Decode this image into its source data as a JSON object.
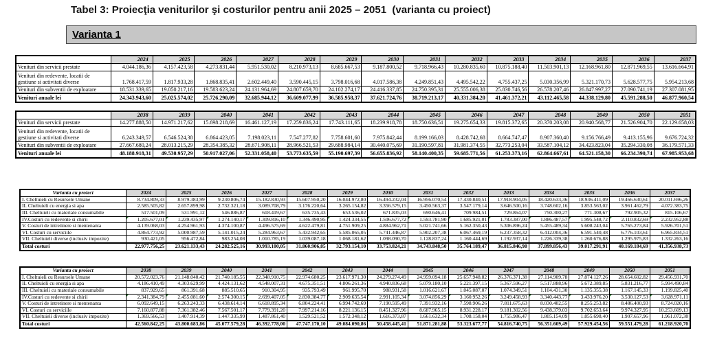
{
  "title": "Tabel 3: Proiecţia veniturilor şi costurilor pentru anii 2025 – 2051  (varianta cu proiect)",
  "variant_label": "Varianta 1",
  "colors": {
    "table_header_bg": "#d8d8d8",
    "variant_bar_bg": "#c6c6c6",
    "flag_green": "#2e7d32"
  },
  "tables": [
    {
      "kind": "rev",
      "years": [
        "2024",
        "2025",
        "2026",
        "2027",
        "2028",
        "2029",
        "2030",
        "2031",
        "2032",
        "2033",
        "2034",
        "2035",
        "2036",
        "2037"
      ],
      "rows": [
        {
          "label": "Venituri din servicii prestate",
          "values": [
            "4.044.186,36",
            "4.157.423,58",
            "4.273.831,44",
            "5.951.530,02",
            "8.210.973,13",
            "8.685.667,53",
            "9.187.800,52",
            "9.718.966,43",
            "10.280.835,60",
            "10.875.188,40",
            "11.503.901,13",
            "12.168.961,80",
            "12.871.969,55",
            "13.616.664,91"
          ]
        },
        {
          "label": "Venituri din redevente, locatii de gestiune si activitati diverse",
          "two_line": true,
          "values": [
            "1.768.417,59",
            "1.817.933,28",
            "1.868.835,41",
            "2.602.449,40",
            "3.590.445,15",
            "3.798.016,68",
            "4.017.586,38",
            "4.249.851,43",
            "4.495.542,22",
            "4.755.437,25",
            "5.030.356,99",
            "5.321.170,73",
            "5.628.577,75",
            "5.954.213,68"
          ]
        },
        {
          "label": "Venituri din subventii de exploatare",
          "values": [
            "18.531.339,65",
            "19.050.217,16",
            "19.583.623,24",
            "24.131.964,69",
            "24.807.659,70",
            "24.102.274,17",
            "24.416.337,85",
            "24.750.395,31",
            "25.555.006,38",
            "25.830.746,56",
            "26.578.207,46",
            "26.847.997,27",
            "27.090.741,19",
            "27.307.081,95"
          ]
        }
      ],
      "total": {
        "label": "Venituri anuale lei",
        "values": [
          "24.343.943,60",
          "25.025.574,02",
          "25.726.290,09",
          "32.685.944,12",
          "36.609.077,99",
          "36.585.958,37",
          "37.621.724,76",
          "38.719.213,17",
          "40.331.384,20",
          "41.461.372,21",
          "43.112.465,58",
          "44.338.129,80",
          "45.591.288,50",
          "46.877.960,54"
        ]
      }
    },
    {
      "kind": "rev",
      "years": [
        "2038",
        "2039",
        "2040",
        "2041",
        "2042",
        "2043",
        "2044",
        "2045",
        "2046",
        "2047",
        "2048",
        "2049",
        "2050",
        "2051"
      ],
      "rows": [
        {
          "label": "Venituri din servicii prestate",
          "values": [
            "14.277.888,50",
            "14.971.217,62",
            "15.698.218,69",
            "16.461.127,19",
            "17.259.836,24",
            "17.743.111,65",
            "18.239.918,78",
            "18.750.636,51",
            "19.275.654,33",
            "19.815.372,65",
            "20.370.203,08",
            "20.940.568,77",
            "21.526.904,70",
            "22.129.658,03"
          ]
        },
        {
          "label": "Venituri din redevente, locatii de gestiune si activitati diverse",
          "two_line": true,
          "values": [
            "6.243.349,57",
            "6.546.524,38",
            "6.864.423,05",
            "7.198.023,11",
            "7.547.277,82",
            "7.758.601,60",
            "7.975.842,44",
            "8.199.166,03",
            "8.428.742,68",
            "8.664.747,47",
            "8.907.360,40",
            "9.156.766,49",
            "9.413.155,96",
            "9.676.724,32"
          ]
        },
        {
          "label": "Venituri din subventii de exploatare",
          "values": [
            "27.667.680,24",
            "28.013.215,29",
            "28.354.385,32",
            "28.671.908,11",
            "28.966.521,53",
            "29.688.984,14",
            "30.440.075,69",
            "31.190.597,81",
            "31.981.374,55",
            "32.773.253,04",
            "33.587.104,12",
            "34.423.823,04",
            "35.294.330,08",
            "36.179.571,33"
          ]
        }
      ],
      "total": {
        "label": "Venituri anuale lei",
        "values": [
          "48.188.918,31",
          "49.530.957,29",
          "50.917.027,06",
          "52.331.058,40",
          "53.773.635,59",
          "55.190.697,39",
          "56.655.836,92",
          "58.140.400,35",
          "59.685.771,56",
          "61.253.373,16",
          "62.864.667,61",
          "64.521.158,30",
          "66.234.390,74",
          "67.985.953,68"
        ]
      }
    },
    {
      "kind": "cost",
      "header_label": "Varianta cu proiect",
      "flag_row": 3,
      "years": [
        "2024",
        "2025",
        "2026",
        "2027",
        "2028",
        "2029",
        "2030",
        "2031",
        "2032",
        "2033",
        "2034",
        "2035",
        "2036",
        "2037"
      ],
      "rows": [
        {
          "label": "I. Cheltuieli cu Resursele Umane",
          "values": [
            "8.734.809,33",
            "8.979.383,99",
            "9.230.806,74",
            "15.182.830,93",
            "15.607.950,20",
            "16.044.972,80",
            "16.494.232,04",
            "16.956.070,54",
            "17.430.840,51",
            "17.918.904,05",
            "18.420.633,36",
            "18.936.411,09",
            "19.466.630,61",
            "20.011.696,26"
          ]
        },
        {
          "label": "II. Cheltuieli cu energia si apa",
          "values": [
            "2.585.505,82",
            "2.657.899,98",
            "2.732.321,18",
            "3.089.708,79",
            "3.176.220,64",
            "3.265.154,82",
            "3.356.579,15",
            "3.450.563,37",
            "3.547.179,14",
            "3.646.500,16",
            "3.748.602,16",
            "3.853.563,02",
            "3.961.462,79",
            "4.072.383,75"
          ]
        },
        {
          "label": "III. Cheltuieli cu materiale consumabile",
          "values": [
            "517.501,09",
            "531.991,12",
            "546.886,87",
            "618.419,67",
            "635.735,43",
            "653.536,02",
            "671.835,03",
            "690.646,41",
            "709.984,51",
            "729.864,07",
            "750.300,27",
            "771.308,67",
            "792.905,32",
            "815.106,67"
          ]
        },
        {
          "label": "IV.Costuri cu redevente si chirii",
          "values": [
            "1.205.677,01",
            "1.239.435,97",
            "1.274.140,17",
            "1.309.816,10",
            "1.346.490,95",
            "1.424.334,55",
            "1.506.677,72",
            "1.593.781,90",
            "1.685.921,01",
            "1.783.387,00",
            "1.886.487,57",
            "1.995.548,72",
            "2.110.832,69",
            "2.232.952,88"
          ]
        },
        {
          "label": "V. Costuri de intretinere si mentenanta",
          "values": [
            "4.139.068,03",
            "4.254.961,93",
            "4.374.100,87",
            "4.496.575,69",
            "4.622.479,81",
            "4.751.909,25",
            "4.884.962,71",
            "5.021.741,66",
            "5.162.350,43",
            "5.306.896,24",
            "5.455.489,34",
            "5.608.243,04",
            "5.765.273,84",
            "5.926.701,51"
          ]
        },
        {
          "label": "VI. Costuri cu serviciile",
          "values": [
            "4.864.773,92",
            "5.000.987,59",
            "5.141.015,24",
            "5.284.963,67",
            "5.432.942,65",
            "5.585.065,05",
            "5.741.446,87",
            "5.902.207,38",
            "6.067.469,19",
            "6.237.358,32",
            "6.412.004,36",
            "6.591.540,48",
            "6.776.103,61",
            "6.965.834,51"
          ]
        },
        {
          "label": "VII. Cheltuieli diverse (inclusiv impozite)",
          "values": [
            "930.421,05",
            "956.472,84",
            "983.254,08",
            "1.010.785,19",
            "1.039.087,18",
            "1.068.181,62",
            "1.098.090,70",
            "1.128.837,24",
            "1.160.444,69",
            "1.192.937,14",
            "1.226.339,38",
            "1.260.676,88",
            "1.295.975,83",
            "1.332.263,16"
          ]
        }
      ],
      "total": {
        "label": "Total costuri",
        "values": [
          "22.977.756,25",
          "23.621.133,43",
          "24.282.525,16",
          "30.993.100,05",
          "31.860.906,85",
          "32.793.154,10",
          "33.753.824,21",
          "34.743.848,50",
          "35.764.189,47",
          "36.815.846,98",
          "37.899.856,43",
          "39.017.291,91",
          "40.169.184,69",
          "41.356.938,73"
        ]
      }
    },
    {
      "kind": "cost",
      "header_label": "Varianta cu proiect",
      "flag_row": 3,
      "years": [
        "2038",
        "2039",
        "2040",
        "2041",
        "2042",
        "2043",
        "2044",
        "2045",
        "2046",
        "2047",
        "2048",
        "2049",
        "2050",
        "2051"
      ],
      "rows": [
        {
          "label": "I. Cheltuieli cu Resursele Umane",
          "values": [
            "20.572.023,76",
            "21.148.040,42",
            "21.740.185,55",
            "22.348.910,75",
            "22.974.680,25",
            "23.617.971,30",
            "24.279.274,49",
            "24.959.094,18",
            "25.657.948,82",
            "26.376.371,38",
            "27.114.909,78",
            "27.874.127,26",
            "28.654.602,82",
            "29.456.931,70"
          ]
        },
        {
          "label": "II. Cheltuieli cu energia si apa",
          "values": [
            "4.186.410,49",
            "4.303.629,99",
            "4.424.131,62",
            "4.548.007,31",
            "4.675.351,51",
            "4.806.261,36",
            "4.940.836,68",
            "5.079.180,10",
            "5.221.397,15",
            "5.367.596,27",
            "5.517.888,96",
            "5.672.389,85",
            "5.831.216,77",
            "5.994.490,84"
          ]
        },
        {
          "label": "III. Cheltuieli cu materiale consumabile",
          "values": [
            "837.929,65",
            "861.391,68",
            "885.510,65",
            "910.304,95",
            "935.793,49",
            "961.995,70",
            "988.931,58",
            "1.016.621,67",
            "1.045.087,07",
            "1.074.349,51",
            "1.104.431,30",
            "1.135.355,38",
            "1.167.145,33",
            "1.199.825,40"
          ]
        },
        {
          "label": "IV.Costuri cu redevente si chirii",
          "values": [
            "2.341.384,79",
            "2.455.081,60",
            "2.574.300,15",
            "2.699.407,05",
            "2.830.384,77",
            "2.909.635,54",
            "2.991.105,34",
            "3.074.856,29",
            "3.160.952,26",
            "3.249.458,93",
            "3.340.443,77",
            "3.433.976,20",
            "3.530.127,53",
            "3.628.971,11"
          ]
        },
        {
          "label": "V. Costuri de intretinere si mentenanta",
          "values": [
            "6.092.649,15",
            "6.263.243,33",
            "6.438.614,14",
            "6.618.895,34",
            "6.804.224,41",
            "6.994.742,69",
            "7.190.595,49",
            "7.391.932,16",
            "7.598.906,26",
            "7.811.675,63",
            "8.030.402,55",
            "8.255.253,82",
            "8.486.400,93",
            "8.724.020,16"
          ]
        },
        {
          "label": "VI. Costuri cu serviciile",
          "values": [
            "7.160.877,88",
            "7.361.382,46",
            "7.567.501,17",
            "7.779.391,20",
            "7.997.214,16",
            "8.221.136,15",
            "8.451.327,96",
            "8.687.965,15",
            "8.931.228,17",
            "9.181.302,56",
            "9.438.379,03",
            "9.702.653,64",
            "9.974.327,95",
            "10.253.609,13"
          ]
        },
        {
          "label": "VII. Cheltuieli diverse (inclusiv impozite)",
          "values": [
            "1.369.566,53",
            "1.407.914,39",
            "1.447.335,99",
            "1.487.861,40",
            "1.529.521,52",
            "1.572.348,12",
            "1.616.373,87",
            "1.661.632,34",
            "1.708.158,04",
            "1.755.986,47",
            "1.805.154,09",
            "1.855.698,40",
            "1.907.657,96",
            "1.961.072,38"
          ]
        }
      ],
      "total": {
        "label": "Total costuri",
        "values": [
          "42.560.842,25",
          "43.800.683,86",
          "45.077.579,28",
          "46.392.778,00",
          "47.747.170,10",
          "49.084.090,86",
          "50.458.445,41",
          "51.871.281,88",
          "53.323.677,77",
          "54.816.740,75",
          "56.351.609,49",
          "57.929.454,56",
          "59.551.479,28",
          "61.218.920,70"
        ]
      }
    }
  ]
}
